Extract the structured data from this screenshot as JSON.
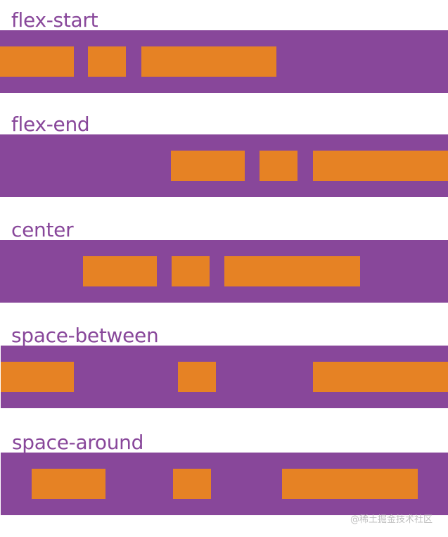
{
  "colors": {
    "container": "#88479a",
    "item": "#e68224",
    "label": "#88479a"
  },
  "rows": [
    {
      "label": "flex-start"
    },
    {
      "label": "flex-end"
    },
    {
      "label": "center"
    },
    {
      "label": "space-between"
    },
    {
      "label": "space-around"
    }
  ],
  "watermark": "@稀土掘金技术社区"
}
